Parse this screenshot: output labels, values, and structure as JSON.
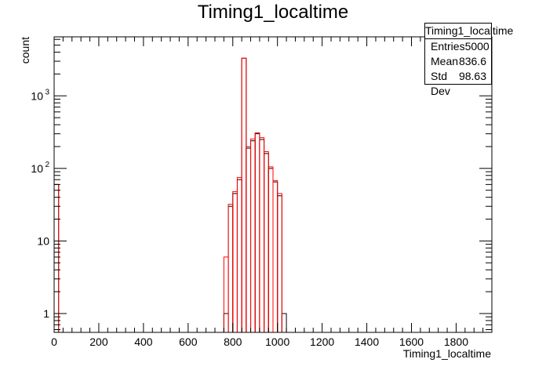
{
  "chart_data": {
    "type": "histogram",
    "title": "Timing1_localtime",
    "xlabel": "Timing1_localtime",
    "ylabel": "count",
    "xlim": [
      0,
      1960
    ],
    "ylim": [
      0.55,
      6500
    ],
    "log_y": true,
    "bin_width": 20,
    "x_ticks": [
      0,
      200,
      400,
      600,
      800,
      1000,
      1200,
      1400,
      1600,
      1800
    ],
    "y_tick_labels": [
      {
        "value": 1,
        "label": "1"
      },
      {
        "value": 10,
        "label": "10"
      },
      {
        "value": 100,
        "label": "10",
        "exp": "2"
      },
      {
        "value": 1000,
        "label": "10",
        "exp": "3"
      }
    ],
    "series": [
      {
        "color": "#000000",
        "bins": [
          {
            "x0": 0,
            "y": 60
          },
          {
            "x0": 760,
            "y": 1
          },
          {
            "x0": 780,
            "y": 30
          },
          {
            "x0": 800,
            "y": 45
          },
          {
            "x0": 820,
            "y": 70
          },
          {
            "x0": 840,
            "y": 3300
          },
          {
            "x0": 860,
            "y": 190
          },
          {
            "x0": 880,
            "y": 240
          },
          {
            "x0": 900,
            "y": 300
          },
          {
            "x0": 920,
            "y": 250
          },
          {
            "x0": 940,
            "y": 160
          },
          {
            "x0": 960,
            "y": 100
          },
          {
            "x0": 980,
            "y": 65
          },
          {
            "x0": 1000,
            "y": 42
          },
          {
            "x0": 1020,
            "y": 1
          }
        ]
      },
      {
        "color": "#ff0000",
        "bins": [
          {
            "x0": 0,
            "y": 60
          },
          {
            "x0": 760,
            "y": 6
          },
          {
            "x0": 780,
            "y": 32
          },
          {
            "x0": 800,
            "y": 48
          },
          {
            "x0": 820,
            "y": 75
          },
          {
            "x0": 840,
            "y": 3300
          },
          {
            "x0": 860,
            "y": 200
          },
          {
            "x0": 880,
            "y": 255
          },
          {
            "x0": 900,
            "y": 310
          },
          {
            "x0": 920,
            "y": 265
          },
          {
            "x0": 940,
            "y": 170
          },
          {
            "x0": 960,
            "y": 105
          },
          {
            "x0": 980,
            "y": 68
          },
          {
            "x0": 1000,
            "y": 45
          }
        ]
      }
    ]
  },
  "stats": {
    "title": "Timing1_localtime",
    "rows": [
      {
        "label": "Entries",
        "value": "5000"
      },
      {
        "label": "Mean",
        "value": "836.6"
      },
      {
        "label": "Std Dev",
        "value": "98.63"
      }
    ]
  }
}
